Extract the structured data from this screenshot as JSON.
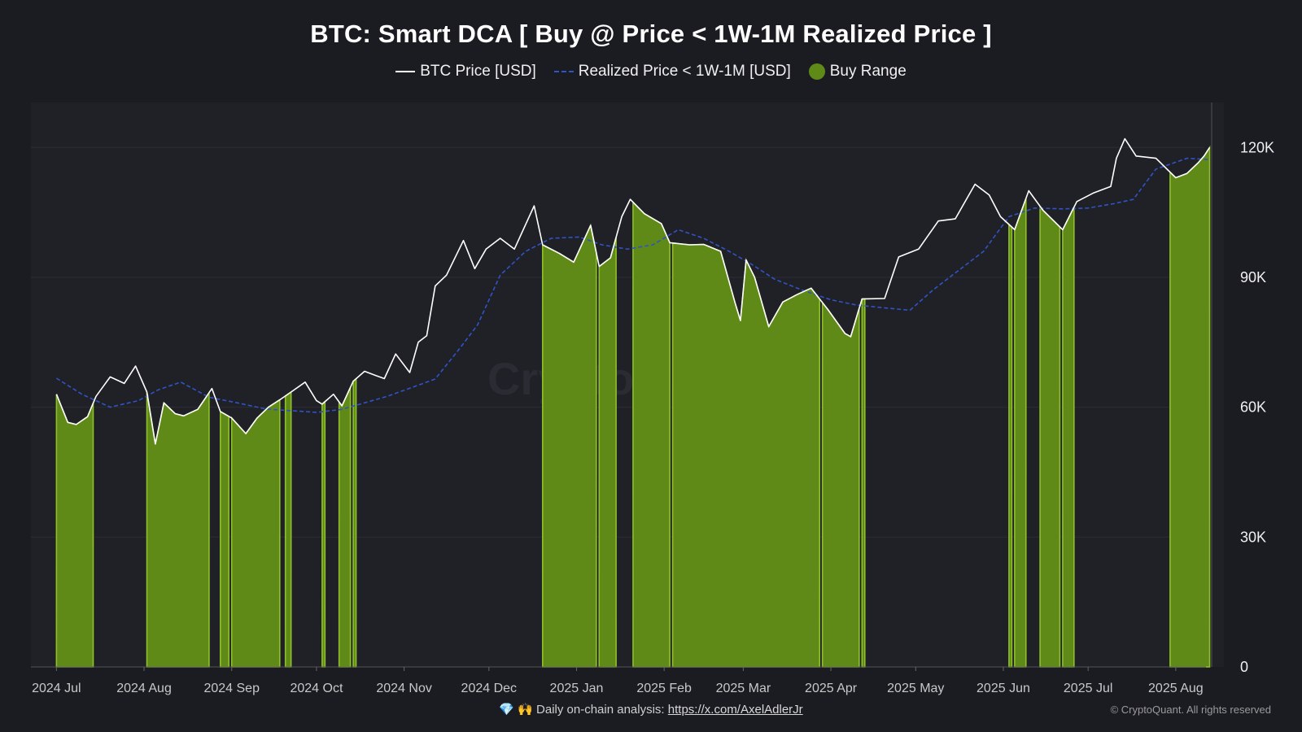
{
  "chart_data": {
    "type": "area",
    "title": "BTC: Smart DCA [ Buy @ Price < 1W-1M Realized Price ]",
    "watermark": "CryptoQuant",
    "legend": {
      "placement": "top-center",
      "items": [
        {
          "label": "BTC Price [USD]",
          "style": "solid-line",
          "color": "#ffffff"
        },
        {
          "label": "Realized Price < 1W-1M [USD]",
          "style": "dashed-line",
          "color": "#2f54c4"
        },
        {
          "label": "Buy Range",
          "style": "filled-area",
          "color": "#5f8a18"
        }
      ]
    },
    "x_ticks": [
      "2024 Jul",
      "2024 Aug",
      "2024 Sep",
      "2024 Oct",
      "2024 Nov",
      "2024 Dec",
      "2025 Jan",
      "2025 Feb",
      "2025 Mar",
      "2025 Apr",
      "2025 May",
      "2025 Jun",
      "2025 Jul",
      "2025 Aug"
    ],
    "y_ticks": [
      "0",
      "30K",
      "60K",
      "90K",
      "120K"
    ],
    "ylim": [
      0,
      127000
    ],
    "xlim": [
      "2024-06-26",
      "2025-08-14"
    ],
    "grid": true,
    "y_axis_side": "right",
    "series": [
      {
        "name": "BTC Price [USD]",
        "color": "#ffffff",
        "points": [
          [
            "2024-07-01",
            63000
          ],
          [
            "2024-07-05",
            56500
          ],
          [
            "2024-07-08",
            56000
          ],
          [
            "2024-07-12",
            57800
          ],
          [
            "2024-07-15",
            62500
          ],
          [
            "2024-07-20",
            67000
          ],
          [
            "2024-07-25",
            65500
          ],
          [
            "2024-07-29",
            69500
          ],
          [
            "2024-08-02",
            63500
          ],
          [
            "2024-08-05",
            51500
          ],
          [
            "2024-08-08",
            61000
          ],
          [
            "2024-08-12",
            58500
          ],
          [
            "2024-08-15",
            58000
          ],
          [
            "2024-08-20",
            59500
          ],
          [
            "2024-08-25",
            64300
          ],
          [
            "2024-08-28",
            59000
          ],
          [
            "2024-09-01",
            57500
          ],
          [
            "2024-09-06",
            53900
          ],
          [
            "2024-09-10",
            57500
          ],
          [
            "2024-09-14",
            60000
          ],
          [
            "2024-09-18",
            61700
          ],
          [
            "2024-09-22",
            63500
          ],
          [
            "2024-09-27",
            65800
          ],
          [
            "2024-10-01",
            61500
          ],
          [
            "2024-10-03",
            60700
          ],
          [
            "2024-10-07",
            63000
          ],
          [
            "2024-10-10",
            60300
          ],
          [
            "2024-10-14",
            66000
          ],
          [
            "2024-10-18",
            68300
          ],
          [
            "2024-10-22",
            67300
          ],
          [
            "2024-10-25",
            66600
          ],
          [
            "2024-10-29",
            72300
          ],
          [
            "2024-11-03",
            68000
          ],
          [
            "2024-11-06",
            75000
          ],
          [
            "2024-11-09",
            76500
          ],
          [
            "2024-11-12",
            88000
          ],
          [
            "2024-11-16",
            90500
          ],
          [
            "2024-11-22",
            98500
          ],
          [
            "2024-11-26",
            92000
          ],
          [
            "2024-11-30",
            96500
          ],
          [
            "2024-12-05",
            99000
          ],
          [
            "2024-12-10",
            96500
          ],
          [
            "2024-12-17",
            106500
          ],
          [
            "2024-12-20",
            97500
          ],
          [
            "2024-12-26",
            95500
          ],
          [
            "2024-12-31",
            93500
          ],
          [
            "2025-01-06",
            102000
          ],
          [
            "2025-01-09",
            92500
          ],
          [
            "2025-01-13",
            94500
          ],
          [
            "2025-01-17",
            104000
          ],
          [
            "2025-01-20",
            108000
          ],
          [
            "2025-01-25",
            104700
          ],
          [
            "2025-01-31",
            102400
          ],
          [
            "2025-02-03",
            98000
          ],
          [
            "2025-02-10",
            97500
          ],
          [
            "2025-02-15",
            97600
          ],
          [
            "2025-02-21",
            96000
          ],
          [
            "2025-02-26",
            84300
          ],
          [
            "2025-02-28",
            80000
          ],
          [
            "2025-03-02",
            94000
          ],
          [
            "2025-03-05",
            90000
          ],
          [
            "2025-03-10",
            78600
          ],
          [
            "2025-03-15",
            84300
          ],
          [
            "2025-03-20",
            86000
          ],
          [
            "2025-03-25",
            87500
          ],
          [
            "2025-03-31",
            82500
          ],
          [
            "2025-04-06",
            77000
          ],
          [
            "2025-04-08",
            76300
          ],
          [
            "2025-04-12",
            85000
          ],
          [
            "2025-04-20",
            85100
          ],
          [
            "2025-04-25",
            94700
          ],
          [
            "2025-05-02",
            96500
          ],
          [
            "2025-05-09",
            103000
          ],
          [
            "2025-05-15",
            103500
          ],
          [
            "2025-05-22",
            111500
          ],
          [
            "2025-05-27",
            109000
          ],
          [
            "2025-05-31",
            104000
          ],
          [
            "2025-06-05",
            101000
          ],
          [
            "2025-06-10",
            110000
          ],
          [
            "2025-06-15",
            105500
          ],
          [
            "2025-06-22",
            101000
          ],
          [
            "2025-06-27",
            107500
          ],
          [
            "2025-07-03",
            109500
          ],
          [
            "2025-07-09",
            111000
          ],
          [
            "2025-07-11",
            117500
          ],
          [
            "2025-07-14",
            122000
          ],
          [
            "2025-07-18",
            118000
          ],
          [
            "2025-07-25",
            117500
          ],
          [
            "2025-08-01",
            113000
          ],
          [
            "2025-08-05",
            114000
          ],
          [
            "2025-08-09",
            116500
          ],
          [
            "2025-08-11",
            118000
          ],
          [
            "2025-08-13",
            120000
          ]
        ]
      },
      {
        "name": "Realized Price < 1W-1M [USD]",
        "color": "#2f54c4",
        "dashed": true,
        "points": [
          [
            "2024-07-01",
            66700
          ],
          [
            "2024-07-10",
            63000
          ],
          [
            "2024-07-20",
            60000
          ],
          [
            "2024-07-30",
            61500
          ],
          [
            "2024-08-06",
            64000
          ],
          [
            "2024-08-14",
            65800
          ],
          [
            "2024-08-24",
            62300
          ],
          [
            "2024-09-03",
            61000
          ],
          [
            "2024-09-13",
            59600
          ],
          [
            "2024-09-22",
            59200
          ],
          [
            "2024-10-01",
            58800
          ],
          [
            "2024-10-10",
            59500
          ],
          [
            "2024-10-18",
            61000
          ],
          [
            "2024-10-26",
            62500
          ],
          [
            "2024-11-04",
            64600
          ],
          [
            "2024-11-12",
            66500
          ],
          [
            "2024-11-20",
            73000
          ],
          [
            "2024-11-27",
            79000
          ],
          [
            "2024-12-05",
            90500
          ],
          [
            "2024-12-14",
            96000
          ],
          [
            "2024-12-23",
            99000
          ],
          [
            "2025-01-02",
            99300
          ],
          [
            "2025-01-10",
            97500
          ],
          [
            "2025-01-19",
            96500
          ],
          [
            "2025-01-28",
            97500
          ],
          [
            "2025-02-06",
            101000
          ],
          [
            "2025-02-15",
            99000
          ],
          [
            "2025-02-24",
            96000
          ],
          [
            "2025-03-04",
            93000
          ],
          [
            "2025-03-12",
            89600
          ],
          [
            "2025-03-22",
            87000
          ],
          [
            "2025-04-01",
            84800
          ],
          [
            "2025-04-10",
            83600
          ],
          [
            "2025-04-19",
            83000
          ],
          [
            "2025-04-29",
            82400
          ],
          [
            "2025-05-07",
            87000
          ],
          [
            "2025-05-15",
            91000
          ],
          [
            "2025-05-25",
            96000
          ],
          [
            "2025-06-03",
            104000
          ],
          [
            "2025-06-12",
            106000
          ],
          [
            "2025-06-22",
            105800
          ],
          [
            "2025-07-01",
            106000
          ],
          [
            "2025-07-10",
            107000
          ],
          [
            "2025-07-17",
            108000
          ],
          [
            "2025-07-25",
            115000
          ],
          [
            "2025-08-05",
            117500
          ],
          [
            "2025-08-13",
            117200
          ]
        ]
      },
      {
        "name": "Buy Range",
        "color": "#5f8a18",
        "ranges": [
          [
            "2024-07-01",
            "2024-07-14"
          ],
          [
            "2024-08-02",
            "2024-08-24"
          ],
          [
            "2024-08-28",
            "2024-08-31"
          ],
          [
            "2024-09-01",
            "2024-09-18"
          ],
          [
            "2024-09-20",
            "2024-09-22"
          ],
          [
            "2024-10-03",
            "2024-10-04"
          ],
          [
            "2024-10-09",
            "2024-10-13"
          ],
          [
            "2024-10-14",
            "2024-10-15"
          ],
          [
            "2024-12-20",
            "2025-01-08"
          ],
          [
            "2025-01-09",
            "2025-01-15"
          ],
          [
            "2025-01-21",
            "2025-02-03"
          ],
          [
            "2025-02-04",
            "2025-03-28"
          ],
          [
            "2025-03-29",
            "2025-04-11"
          ],
          [
            "2025-04-12",
            "2025-04-13"
          ],
          [
            "2025-06-03",
            "2025-06-04"
          ],
          [
            "2025-06-05",
            "2025-06-09"
          ],
          [
            "2025-06-14",
            "2025-06-21"
          ],
          [
            "2025-06-22",
            "2025-06-26"
          ],
          [
            "2025-07-30",
            "2025-08-13"
          ]
        ]
      }
    ]
  },
  "footer": {
    "gem_icon": "💎",
    "hands_icon": "🙌",
    "text": "Daily on-chain analysis:",
    "link": "https://x.com/AxelAdlerJr",
    "copyright": "© CryptoQuant. All rights reserved"
  }
}
